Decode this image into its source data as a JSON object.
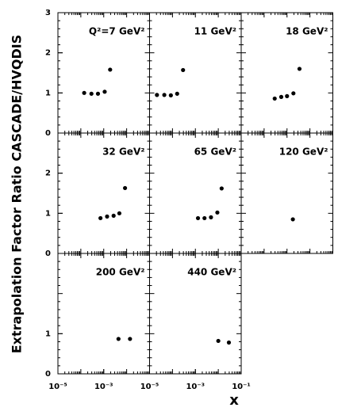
{
  "ylabel": "Extrapolation Factor Ratio CASCADE/HVQDIS",
  "xlabel": "x",
  "chart_data": [
    {
      "type": "scatter",
      "title": "Q²=7 GeV²",
      "x": [
        0.00014,
        0.00029,
        0.00056,
        0.0011,
        0.0019
      ],
      "values": [
        1.0,
        0.98,
        0.98,
        1.03,
        1.58
      ],
      "color": "#000000",
      "xscale": "log",
      "xlim": [
        1e-05,
        0.1
      ],
      "ylim": [
        0,
        3
      ],
      "yticks": [
        0,
        1,
        2,
        3
      ]
    },
    {
      "type": "scatter",
      "title": "11 GeV²",
      "x": [
        2.1e-05,
        4.4e-05,
        8.5e-05,
        0.00016,
        0.00029
      ],
      "values": [
        0.95,
        0.95,
        0.94,
        0.98,
        1.57
      ],
      "color": "#000000",
      "xscale": "log",
      "xlim": [
        1e-05,
        0.1
      ],
      "ylim": [
        0,
        3
      ]
    },
    {
      "type": "scatter",
      "title": "18 GeV²",
      "x": [
        0.00029,
        0.00056,
        0.001,
        0.0019,
        0.0035
      ],
      "values": [
        0.86,
        0.9,
        0.92,
        0.99,
        1.6
      ],
      "color": "#000000",
      "xscale": "log",
      "xlim": [
        1e-05,
        0.1
      ],
      "ylim": [
        0,
        3
      ]
    },
    {
      "type": "scatter",
      "title": "32 GeV²",
      "x": [
        0.00072,
        0.0014,
        0.0027,
        0.0048,
        0.0085
      ],
      "values": [
        0.88,
        0.92,
        0.94,
        1.0,
        1.63
      ],
      "color": "#000000",
      "xscale": "log",
      "xlim": [
        1e-05,
        0.1
      ],
      "ylim": [
        0,
        3
      ],
      "yticks": [
        0,
        1,
        2
      ]
    },
    {
      "type": "scatter",
      "title": "65 GeV²",
      "x": [
        0.0013,
        0.0025,
        0.0048,
        0.0091,
        0.014
      ],
      "values": [
        0.88,
        0.88,
        0.9,
        1.02,
        1.62
      ],
      "color": "#000000",
      "xscale": "log",
      "xlim": [
        1e-05,
        0.1
      ],
      "ylim": [
        0,
        3
      ]
    },
    {
      "type": "scatter",
      "title": "120 GeV²",
      "x": [
        0.0018
      ],
      "values": [
        0.85
      ],
      "color": "#000000",
      "xscale": "log",
      "xlim": [
        1e-05,
        0.1
      ],
      "ylim": [
        0,
        3
      ]
    },
    {
      "type": "scatter",
      "title": "200 GeV²",
      "x": [
        0.0044,
        0.014
      ],
      "values": [
        0.87,
        0.87
      ],
      "color": "#000000",
      "xscale": "log",
      "xlim": [
        1e-05,
        0.1
      ],
      "ylim": [
        0,
        3
      ],
      "yticks": [
        0,
        1
      ],
      "xticks": [
        {
          "value": 1e-05,
          "label": "10⁻⁵"
        },
        {
          "value": 0.001,
          "label": "10⁻³"
        }
      ]
    },
    {
      "type": "scatter",
      "title": "440 GeV²",
      "x": [
        0.01,
        0.029
      ],
      "values": [
        0.82,
        0.78
      ],
      "color": "#000000",
      "xscale": "log",
      "xlim": [
        1e-05,
        0.1
      ],
      "ylim": [
        0,
        3
      ],
      "xticks": [
        {
          "value": 1e-05,
          "label": "10⁻⁵"
        },
        {
          "value": 0.001,
          "label": "10⁻³"
        },
        {
          "value": 0.1,
          "label": "10⁻¹"
        }
      ]
    }
  ]
}
